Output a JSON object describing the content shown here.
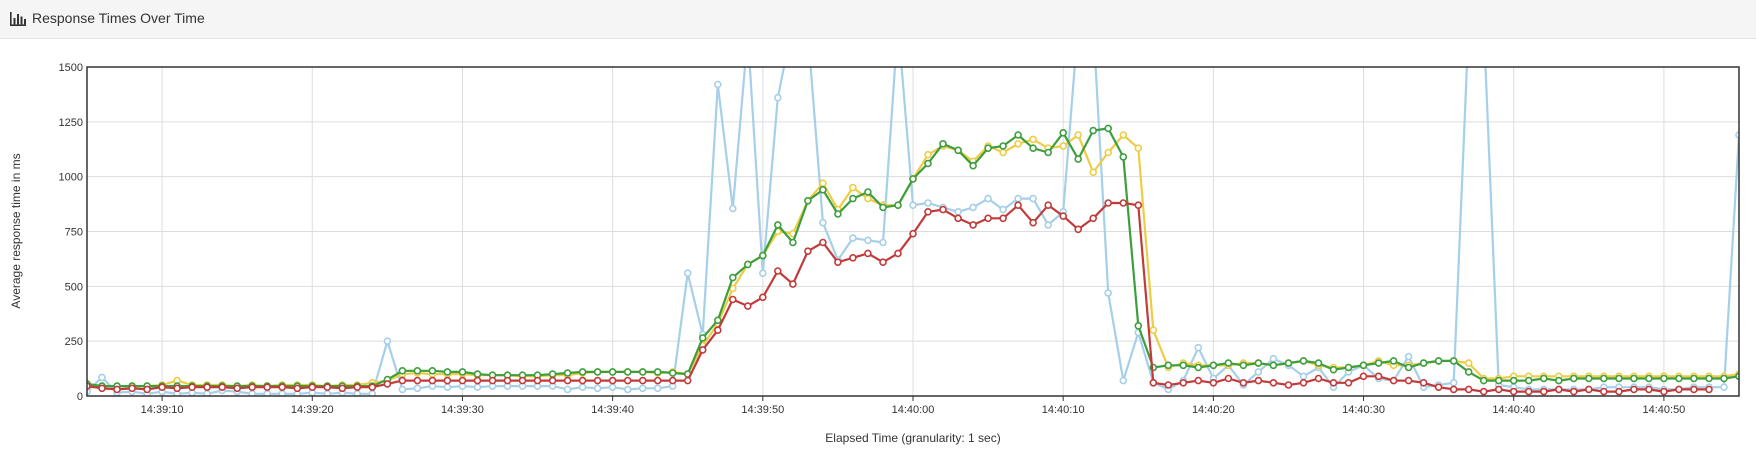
{
  "panel": {
    "title": "Response Times Over Time",
    "icon": "bar-chart-icon"
  },
  "chart_data": {
    "type": "line",
    "title": "Response Times Over Time",
    "xlabel": "Elapsed Time (granularity: 1 sec)",
    "ylabel": "Average response time in ms",
    "x_start": "14:39:05",
    "x_end": "14:40:56",
    "xlim": [
      0,
      110
    ],
    "ylim": [
      0,
      1500
    ],
    "x_ticks": [
      "14:39:10",
      "14:39:20",
      "14:39:30",
      "14:39:40",
      "14:39:50",
      "14:40:00",
      "14:40:10",
      "14:40:20",
      "14:40:30",
      "14:40:40",
      "14:40:50"
    ],
    "y_ticks": [
      0,
      250,
      500,
      750,
      1000,
      1250,
      1500
    ],
    "grid": true,
    "legend": "none",
    "series": [
      {
        "color": "#a6cfe9",
        "values": [
          20,
          85,
          15,
          20,
          10,
          20,
          10,
          15,
          10,
          25,
          20,
          10,
          10,
          10,
          10,
          15,
          10,
          15,
          10,
          10,
          250,
          30,
          35,
          45,
          40,
          45,
          40,
          45,
          45,
          45,
          45,
          45,
          30,
          40,
          35,
          40,
          30,
          35,
          35,
          45,
          560,
          280,
          1420,
          855,
          1650,
          560,
          1360,
          1700,
          1660,
          790,
          620,
          720,
          710,
          700,
          1700,
          870,
          880,
          860,
          840,
          860,
          900,
          850,
          900,
          900,
          780,
          840,
          1700,
          1700,
          470,
          70,
          290,
          60,
          30,
          70,
          220,
          80,
          140,
          50,
          110,
          170,
          140,
          90,
          130,
          40,
          110,
          140,
          80,
          70,
          180,
          40,
          50,
          60,
          1700,
          1700,
          50,
          40,
          30,
          30,
          30,
          30,
          30,
          40,
          40,
          40,
          40,
          30,
          30,
          40,
          40,
          40,
          1190
        ]
      },
      {
        "color": "#eecc45",
        "values": [
          50,
          45,
          45,
          45,
          45,
          50,
          70,
          50,
          50,
          50,
          45,
          50,
          45,
          50,
          50,
          50,
          45,
          50,
          50,
          60,
          70,
          100,
          105,
          100,
          100,
          100,
          95,
          95,
          95,
          90,
          90,
          95,
          95,
          105,
          110,
          110,
          110,
          110,
          105,
          110,
          100,
          230,
          330,
          490,
          600,
          640,
          750,
          740,
          890,
          970,
          850,
          950,
          900,
          870,
          870,
          990,
          1100,
          1140,
          1120,
          1070,
          1140,
          1110,
          1150,
          1170,
          1130,
          1140,
          1190,
          1020,
          1110,
          1190,
          1130,
          300,
          130,
          150,
          140,
          140,
          140,
          150,
          150,
          140,
          150,
          160,
          140,
          130,
          130,
          140,
          160,
          140,
          140,
          150,
          160,
          160,
          150,
          80,
          80,
          90,
          90,
          90,
          90,
          90,
          90,
          90,
          90,
          90,
          90,
          90,
          90,
          90,
          90,
          90,
          100
        ]
      },
      {
        "color": "#3d9e3d",
        "values": [
          55,
          45,
          45,
          45,
          45,
          45,
          45,
          45,
          45,
          45,
          45,
          45,
          45,
          45,
          45,
          45,
          45,
          45,
          45,
          45,
          75,
          115,
          115,
          115,
          110,
          110,
          100,
          95,
          95,
          95,
          95,
          100,
          105,
          110,
          110,
          110,
          110,
          110,
          110,
          105,
          100,
          265,
          345,
          540,
          600,
          640,
          780,
          700,
          890,
          940,
          830,
          900,
          930,
          860,
          870,
          990,
          1060,
          1150,
          1120,
          1050,
          1130,
          1140,
          1190,
          1130,
          1110,
          1200,
          1080,
          1210,
          1220,
          1090,
          320,
          130,
          140,
          140,
          130,
          140,
          150,
          140,
          150,
          140,
          150,
          160,
          150,
          120,
          130,
          140,
          150,
          160,
          130,
          150,
          160,
          160,
          110,
          70,
          70,
          70,
          70,
          80,
          70,
          80,
          80,
          80,
          80,
          80,
          80,
          80,
          80,
          80,
          80,
          80,
          90
        ]
      },
      {
        "color": "#c23a3a",
        "values": [
          45,
          35,
          30,
          35,
          30,
          40,
          35,
          40,
          40,
          40,
          35,
          40,
          40,
          40,
          35,
          40,
          40,
          35,
          40,
          40,
          55,
          70,
          70,
          70,
          70,
          70,
          70,
          70,
          70,
          70,
          70,
          70,
          70,
          70,
          70,
          70,
          70,
          70,
          70,
          70,
          70,
          210,
          300,
          440,
          410,
          450,
          570,
          510,
          660,
          700,
          610,
          630,
          650,
          610,
          650,
          740,
          840,
          850,
          810,
          780,
          810,
          810,
          870,
          790,
          870,
          820,
          760,
          810,
          880,
          880,
          870,
          60,
          50,
          60,
          70,
          60,
          80,
          60,
          70,
          60,
          50,
          60,
          80,
          60,
          60,
          90,
          90,
          70,
          70,
          60,
          40,
          30,
          30,
          20,
          30,
          20,
          20,
          20,
          30,
          20,
          30,
          20,
          20,
          30,
          30,
          20,
          30,
          30,
          30
        ]
      }
    ]
  }
}
